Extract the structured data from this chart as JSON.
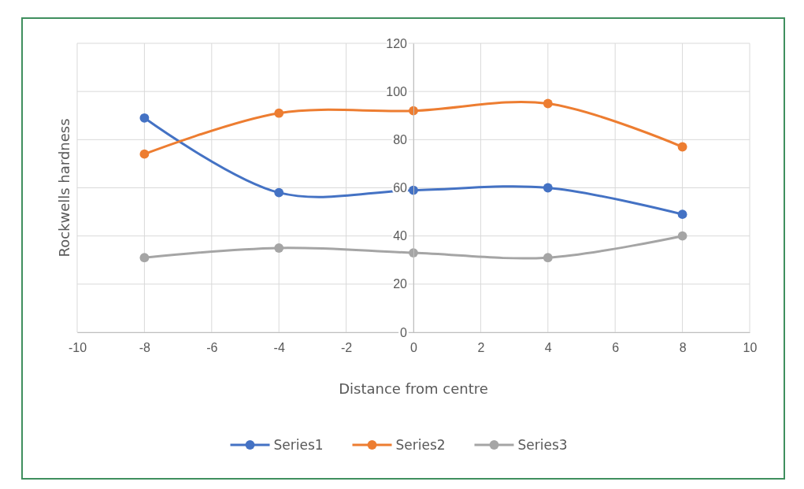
{
  "chart_data": {
    "type": "line",
    "xlabel": "Distance from centre",
    "ylabel": "Rockwells hardness",
    "x": [
      -8,
      -4,
      0,
      4,
      8
    ],
    "series": [
      {
        "name": "Series1",
        "color": "#4472c4",
        "values": [
          89,
          58,
          59,
          60,
          49
        ]
      },
      {
        "name": "Series2",
        "color": "#ed7d31",
        "values": [
          74,
          91,
          92,
          95,
          77
        ]
      },
      {
        "name": "Series3",
        "color": "#a5a5a5",
        "values": [
          31,
          35,
          33,
          31,
          40
        ]
      }
    ],
    "xlim": [
      -10,
      10
    ],
    "xticks": [
      -10,
      -8,
      -6,
      -4,
      -2,
      0,
      2,
      4,
      6,
      8,
      10
    ],
    "ylim": [
      0,
      120
    ],
    "yticks": [
      0,
      20,
      40,
      60,
      80,
      100,
      120
    ],
    "grid": true,
    "legend": "bottom",
    "marker": "circle",
    "line_style": "solid"
  }
}
